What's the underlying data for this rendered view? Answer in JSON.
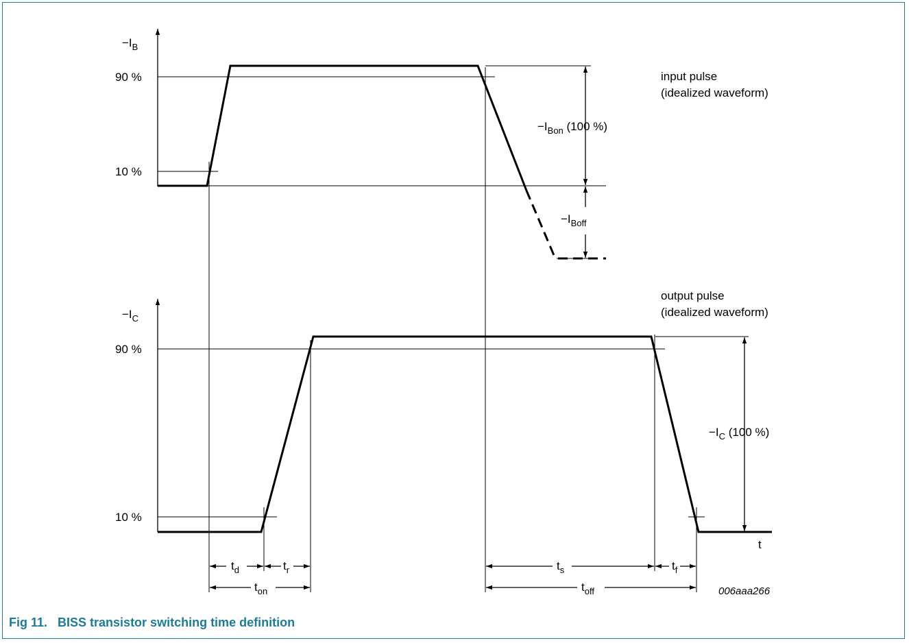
{
  "caption": "Fig 11.   BISS transistor switching time definition",
  "diagram": {
    "axis_ib": {
      "main": "−I",
      "sub": "B"
    },
    "axis_ic": {
      "main": "−I",
      "sub": "C"
    },
    "axis_t": "t",
    "input_90": "90 %",
    "input_10": "10 %",
    "output_90": "90 %",
    "output_10": "10 %",
    "input_pulse_line1": "input pulse",
    "input_pulse_line2": "(idealized waveform)",
    "output_pulse_line1": "output pulse",
    "output_pulse_line2": "(idealized waveform)",
    "ibon": {
      "main": "−I",
      "sub": "Bon",
      "suffix": " (100 %)"
    },
    "iboff": {
      "main": "−I",
      "sub": "Boff"
    },
    "ic100": {
      "main": "−I",
      "sub": "C",
      "suffix": " (100 %)"
    },
    "td": {
      "main": "t",
      "sub": "d"
    },
    "tr": {
      "main": "t",
      "sub": "r"
    },
    "ton": {
      "main": "t",
      "sub": "on"
    },
    "ts": {
      "main": "t",
      "sub": "s"
    },
    "tf": {
      "main": "t",
      "sub": "f"
    },
    "toff": {
      "main": "t",
      "sub": "off"
    },
    "code": "006aaa266"
  }
}
